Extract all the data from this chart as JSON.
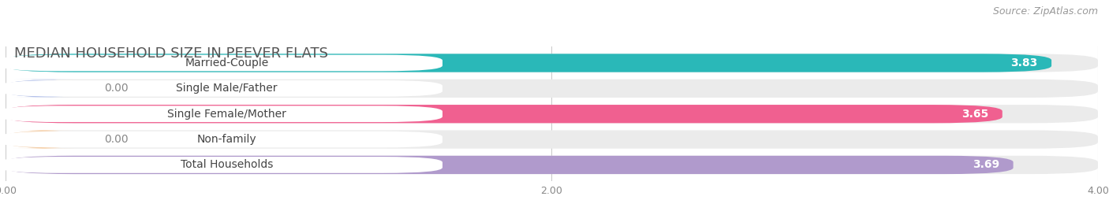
{
  "title": "MEDIAN HOUSEHOLD SIZE IN PEEVER FLATS",
  "source": "Source: ZipAtlas.com",
  "categories": [
    "Married-Couple",
    "Single Male/Father",
    "Single Female/Mother",
    "Non-family",
    "Total Households"
  ],
  "values": [
    3.83,
    0.0,
    3.65,
    0.0,
    3.69
  ],
  "bar_colors": [
    "#2ab8b8",
    "#a8b8e8",
    "#f06090",
    "#f5c89a",
    "#b09acc"
  ],
  "xlim": [
    0,
    4.0
  ],
  "xticks": [
    0.0,
    2.0,
    4.0
  ],
  "xtick_labels": [
    "0.00",
    "2.00",
    "4.00"
  ],
  "background_color": "#ffffff",
  "bar_background_color": "#ebebeb",
  "title_fontsize": 13,
  "label_fontsize": 10,
  "value_fontsize": 10,
  "source_fontsize": 9
}
